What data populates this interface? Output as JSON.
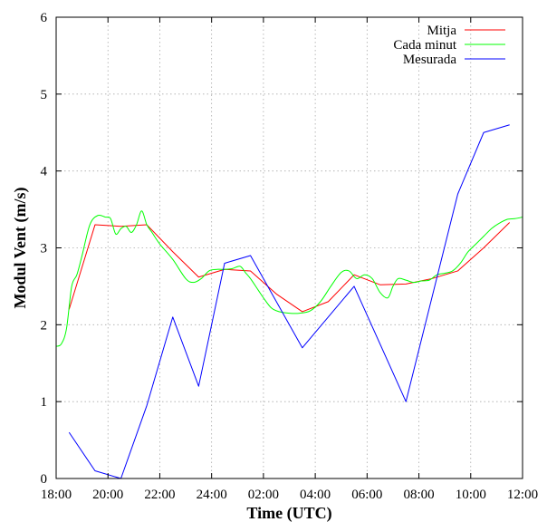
{
  "chart_data": {
    "type": "line",
    "title": "",
    "xlabel": "Time (UTC)",
    "ylabel": "Modul Vent (m/s)",
    "x_tick_labels": [
      "18:00",
      "20:00",
      "22:00",
      "24:00",
      "02:00",
      "04:00",
      "06:00",
      "08:00",
      "10:00",
      "12:00"
    ],
    "y_tick_labels": [
      "0",
      "1",
      "2",
      "3",
      "4",
      "5",
      "6"
    ],
    "xlim": [
      18,
      36
    ],
    "ylim": [
      0,
      6
    ],
    "grid": true,
    "legend_position": "top-right",
    "series": [
      {
        "name": "Mitja",
        "color": "#ff0000",
        "x": [
          18.5,
          19.5,
          20.5,
          21.5,
          22.5,
          23.5,
          24.5,
          25.5,
          26.5,
          27.5,
          28.5,
          29.5,
          30.5,
          31.5,
          32.5,
          33.5,
          34.5,
          35.5
        ],
        "values": [
          2.2,
          3.3,
          3.28,
          3.3,
          2.95,
          2.62,
          2.72,
          2.7,
          2.4,
          2.17,
          2.3,
          2.65,
          2.52,
          2.53,
          2.6,
          2.7,
          3.0,
          3.33
        ]
      },
      {
        "name": "Cada minut",
        "color": "#00ff00",
        "x": [
          18.0,
          18.2,
          18.4,
          18.6,
          18.8,
          19.0,
          19.3,
          19.6,
          19.9,
          20.1,
          20.3,
          20.5,
          20.7,
          20.9,
          21.1,
          21.3,
          21.5,
          21.7,
          22.0,
          22.5,
          23.0,
          23.3,
          23.6,
          23.9,
          24.2,
          24.5,
          24.8,
          25.1,
          25.3,
          25.5,
          25.8,
          26.0,
          26.3,
          26.6,
          27.0,
          27.4,
          27.8,
          28.2,
          28.6,
          29.0,
          29.3,
          29.6,
          29.9,
          30.2,
          30.5,
          30.8,
          31.0,
          31.2,
          31.5,
          31.8,
          32.1,
          32.4,
          32.7,
          33.0,
          33.3,
          33.6,
          33.9,
          34.2,
          34.5,
          34.8,
          35.1,
          35.4,
          35.7,
          36.0
        ],
        "values": [
          1.72,
          1.75,
          1.95,
          2.5,
          2.65,
          2.9,
          3.3,
          3.42,
          3.4,
          3.38,
          3.18,
          3.25,
          3.28,
          3.2,
          3.3,
          3.48,
          3.3,
          3.2,
          3.05,
          2.85,
          2.6,
          2.55,
          2.6,
          2.7,
          2.72,
          2.72,
          2.73,
          2.76,
          2.68,
          2.6,
          2.45,
          2.35,
          2.22,
          2.17,
          2.15,
          2.15,
          2.18,
          2.3,
          2.5,
          2.68,
          2.7,
          2.6,
          2.65,
          2.6,
          2.42,
          2.35,
          2.5,
          2.6,
          2.58,
          2.55,
          2.57,
          2.58,
          2.65,
          2.67,
          2.7,
          2.8,
          2.95,
          3.05,
          3.15,
          3.25,
          3.32,
          3.37,
          3.38,
          3.4
        ]
      },
      {
        "name": "Mesurada",
        "color": "#0000ff",
        "x": [
          18.5,
          19.5,
          20.5,
          21.5,
          22.5,
          23.5,
          24.5,
          25.5,
          27.5,
          29.5,
          31.5,
          33.5,
          34.5,
          35.5
        ],
        "values": [
          0.6,
          0.1,
          0.0,
          0.95,
          2.1,
          1.2,
          2.8,
          2.9,
          1.7,
          2.5,
          1.0,
          3.7,
          4.5,
          4.6
        ]
      }
    ]
  }
}
